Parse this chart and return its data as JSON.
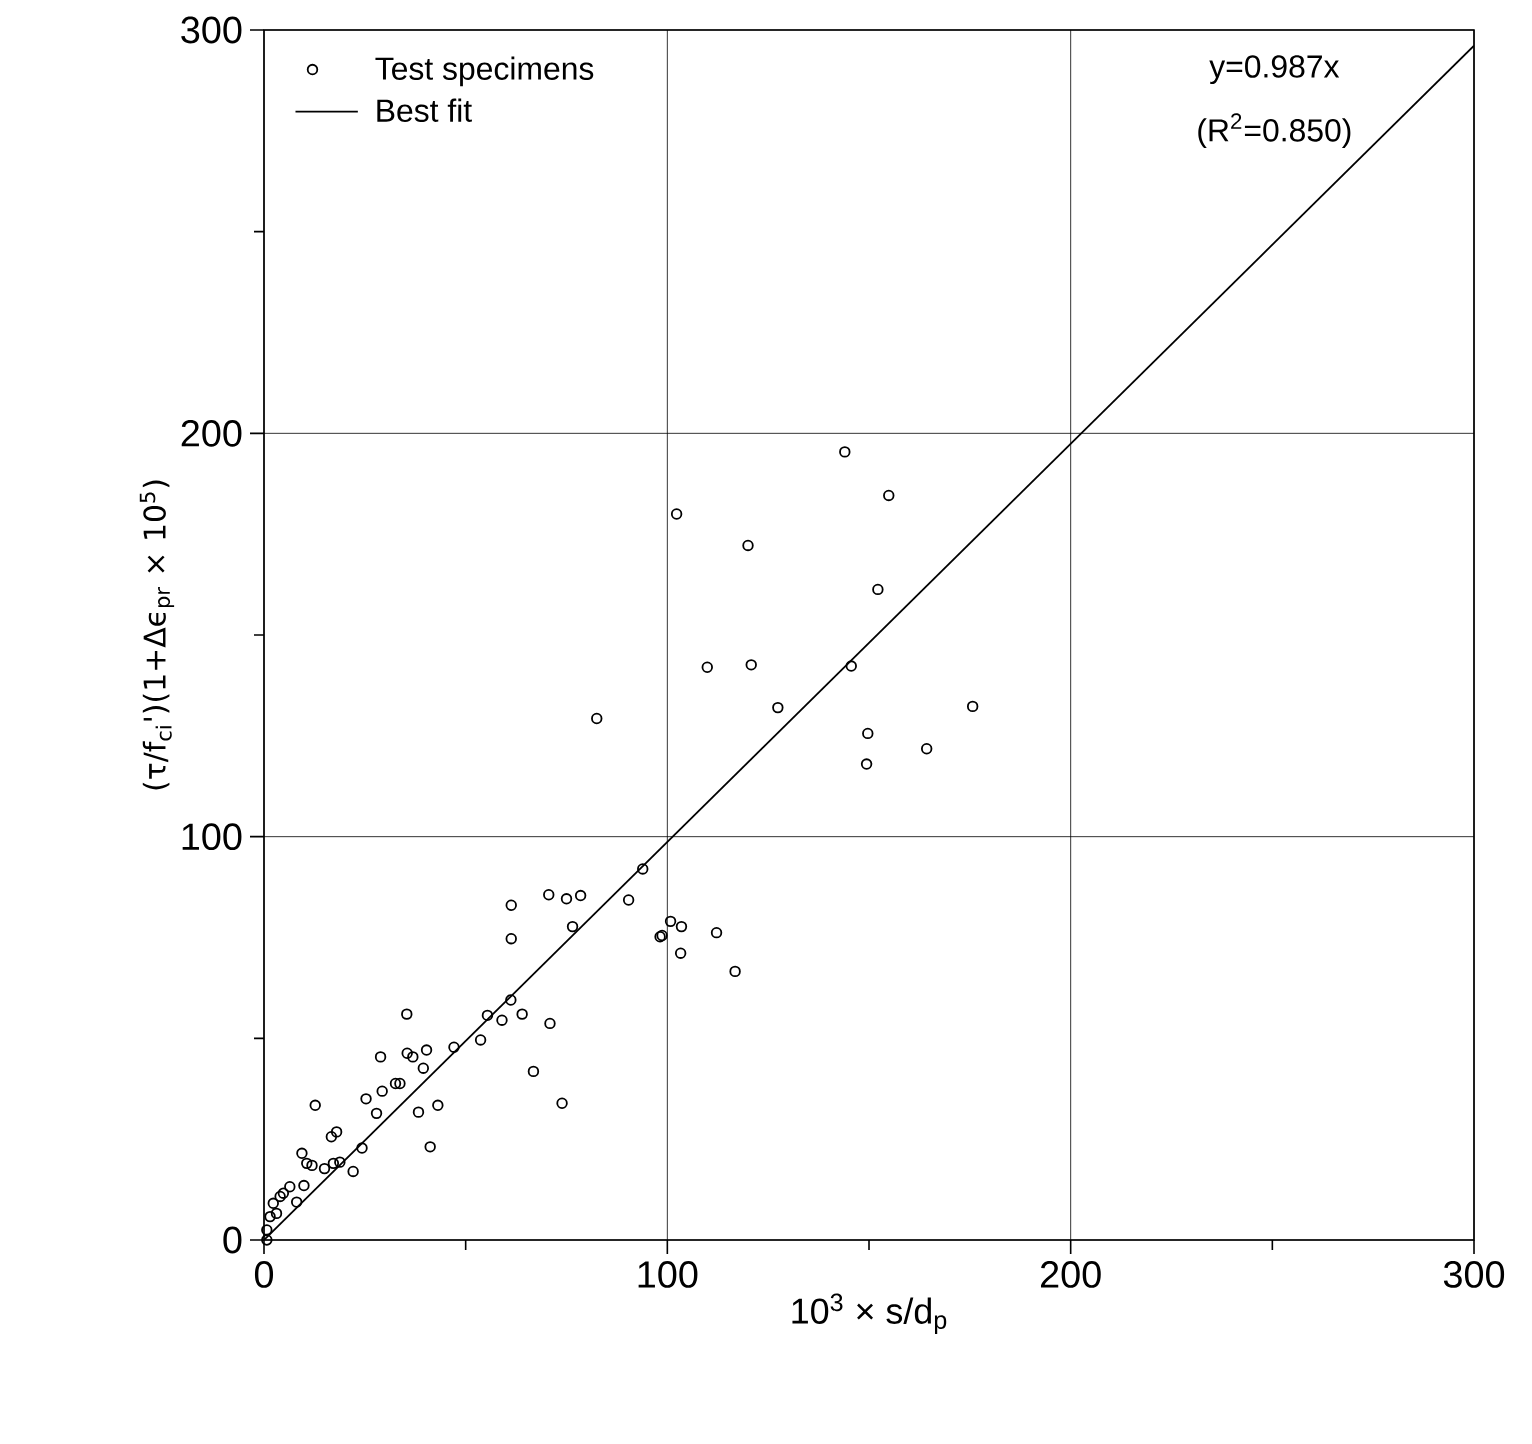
{
  "chart_data": {
    "type": "scatter",
    "xlabel": "10$^{3}$ × s/d$_{p}$",
    "ylabel": "(τ/f$_{ci}$')(1+Δϵ$_{pr}$ × 10$^{5}$)",
    "xlim": [
      0,
      300
    ],
    "ylim": [
      0,
      300
    ],
    "xticks": [
      0,
      {
        "value": 50,
        "label": null
      },
      100,
      {
        "value": 150,
        "label": null
      },
      200,
      {
        "value": 250,
        "label": null
      },
      300
    ],
    "yticks": [
      0,
      {
        "value": 50,
        "label": null
      },
      100,
      {
        "value": 150,
        "label": null
      },
      200,
      {
        "value": 250,
        "label": null
      },
      300
    ],
    "grid": true,
    "legend": "top left",
    "annotations": [
      "y=0.987x",
      "(R$^{2}$=0.850)"
    ],
    "series": [
      {
        "name": "Test specimens",
        "marker": "circle",
        "color": "#000000",
        "x": [
          144,
          154.9,
          102.3,
          120,
          152.2,
          82.5,
          109.9,
          120.8,
          145.6,
          127.4,
          175.7,
          149.7,
          149.4,
          164.3,
          93.9,
          90.4,
          100.8,
          103.5,
          98.2,
          98.7,
          103.3,
          112.2,
          116.8,
          78.5,
          75,
          70.6,
          61.3,
          61.3,
          76.5,
          70.9,
          61.2,
          59,
          55.4,
          64,
          53.7,
          47.1,
          40.3,
          35.5,
          36.9,
          39.5,
          28.9,
          35.4,
          33.7,
          32.6,
          29.3,
          27.9,
          25.3,
          38.3,
          43.1,
          41.2,
          66.8,
          73.9,
          12.7,
          18,
          16.7,
          24.3,
          22.1,
          9.4,
          10.6,
          11.9,
          15,
          17.2,
          18.8,
          9.9,
          6.4,
          4,
          8.1,
          2.3,
          1.5,
          0.7,
          0.7,
          3.1,
          4.8
        ],
        "values": [
          195.4,
          184.6,
          180,
          172.2,
          161.3,
          129.3,
          142,
          142.6,
          142.3,
          132,
          132.3,
          125.6,
          118,
          121.8,
          92,
          84.3,
          79,
          77.7,
          75.2,
          75.5,
          71.1,
          76.2,
          66.6,
          85.4,
          84.6,
          85.6,
          83,
          74.7,
          77.7,
          53.7,
          59.5,
          54.5,
          55.7,
          56,
          49.6,
          47.8,
          47.1,
          46.3,
          45.4,
          42.6,
          45.4,
          56,
          38.8,
          38.8,
          36.9,
          31.4,
          35,
          31.7,
          33.4,
          23.1,
          41.8,
          33.9,
          33.4,
          26.8,
          25.6,
          22.8,
          17,
          21.5,
          19,
          18.5,
          17.7,
          19,
          19.3,
          13.5,
          13.2,
          10.8,
          9.4,
          9.1,
          5.8,
          2.5,
          0,
          6.6,
          11.6
        ]
      },
      {
        "name": "Best fit",
        "type": "line",
        "marker": "none",
        "line_style": "solid",
        "color": "#000000",
        "x": [
          0,
          300
        ],
        "values": [
          0,
          296.1
        ]
      }
    ]
  }
}
